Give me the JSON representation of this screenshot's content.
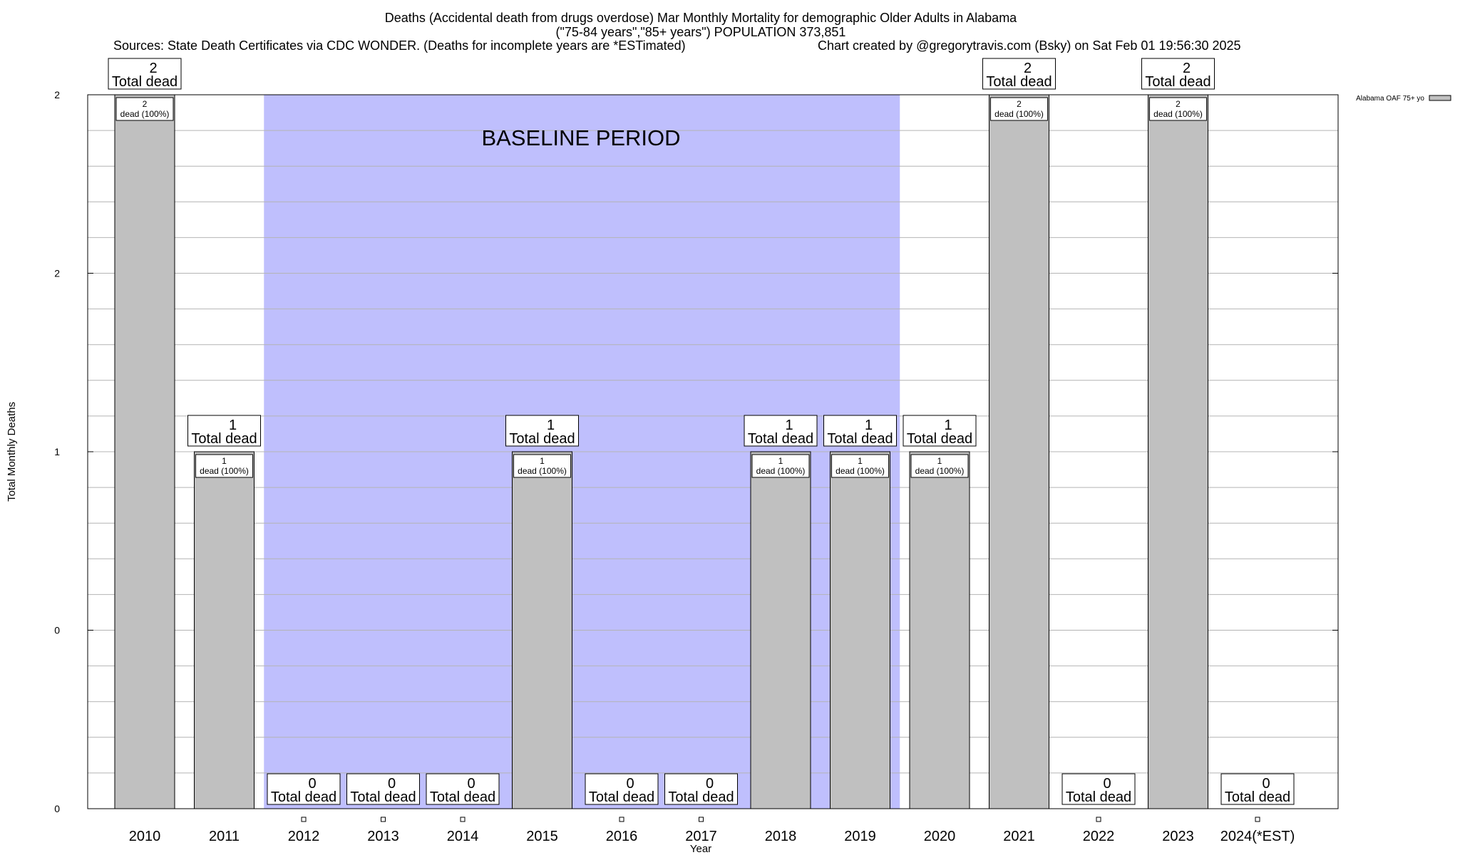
{
  "title_line1": "Deaths (Accidental death from drugs overdose) Mar Monthly Mortality for demographic Older Adults in Alabama",
  "title_line2": "(\"75-84 years\",\"85+ years\") POPULATION 373,851",
  "sources": "Sources: State Death Certificates via CDC WONDER. (Deaths for incomplete years are *ESTimated)",
  "credit": "Chart created by @gregorytravis.com (Bsky) on Sat Feb 01 19:56:30 2025",
  "baseline_label": "BASELINE PERIOD",
  "total_suffix": "Total dead",
  "colors": {
    "bar": "#c0c0c0",
    "baseline": "#bfbffd",
    "grid": "#b4b4b4"
  },
  "chart_data": {
    "type": "bar",
    "xlabel": "Year",
    "ylabel": "Total Monthly Deaths",
    "ylim": [
      0,
      2
    ],
    "y_tick_labels": [
      "0",
      "0",
      "1",
      "2",
      "2"
    ],
    "baseline_period": [
      "2012",
      "2019"
    ],
    "grid": true,
    "legend_position": "top-right",
    "categories": [
      "2010",
      "2011",
      "2012",
      "2013",
      "2014",
      "2015",
      "2016",
      "2017",
      "2018",
      "2019",
      "2020",
      "2021",
      "2022",
      "2023",
      "2024(*EST)"
    ],
    "series": [
      {
        "name": "Alabama OAF 75+ yo",
        "values": [
          2,
          1,
          0,
          0,
          0,
          1,
          0,
          0,
          1,
          1,
          1,
          2,
          0,
          2,
          0
        ],
        "inner_labels": [
          "dead (100%)",
          "dead (100%)",
          "",
          "",
          "",
          "dead (100%)",
          "",
          "",
          "dead (100%)",
          "dead (100%)",
          "dead (100%)",
          "dead (100%)",
          "",
          "dead (100%)",
          ""
        ]
      }
    ]
  }
}
